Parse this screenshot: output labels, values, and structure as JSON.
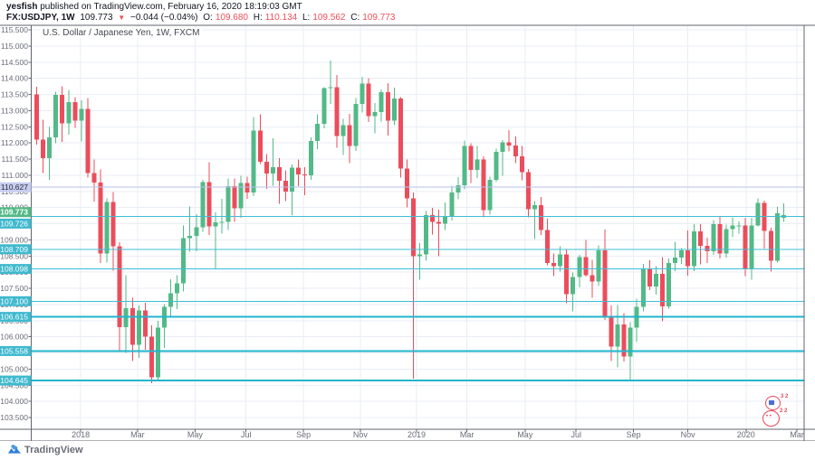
{
  "header": {
    "publisher": "yesfish",
    "published_rest": " published on TradingView.com, February 16, 2020 18:19:03 GMT",
    "symbol": "FX:USDJPY, 1W",
    "last": "109.773",
    "direction": "▼",
    "change": "−0.044 (−0.04%)",
    "o_label": "O:",
    "o_value": "109.680",
    "h_label": "H:",
    "h_value": "110.134",
    "l_label": "L:",
    "l_value": "109.562",
    "c_label": "C:",
    "c_value": "109.773"
  },
  "legend": {
    "text": "U.S. Dollar / Japanese Yen, 1W, FXCM"
  },
  "footer": {
    "brand": "TradingView"
  },
  "stamp": {
    "top_num": "3 2",
    "bottom_num": "2 2"
  },
  "chart_data": {
    "type": "candlestick",
    "title": "U.S. Dollar / Japanese Yen, 1W, FXCM",
    "symbol": "FX:USDJPY",
    "interval": "1W",
    "ylim": [
      103.5,
      115.5
    ],
    "grid": true,
    "y_axis_ticks": [
      115.5,
      115.0,
      114.5,
      114.0,
      113.5,
      113.0,
      112.5,
      112.0,
      111.5,
      111.0,
      110.5,
      110.0,
      109.5,
      109.0,
      108.5,
      108.0,
      107.5,
      107.0,
      106.5,
      106.0,
      105.5,
      105.0,
      104.5,
      104.0,
      103.5
    ],
    "x_axis_months": [
      {
        "label": "2018",
        "i": 6.9
      },
      {
        "label": "Mar",
        "i": 15.8
      },
      {
        "label": "May",
        "i": 24.8
      },
      {
        "label": "Jul",
        "i": 32.8
      },
      {
        "label": "Sep",
        "i": 41.8
      },
      {
        "label": "Nov",
        "i": 50.7
      },
      {
        "label": "2019",
        "i": 59.5
      },
      {
        "label": "Mar",
        "i": 67.4
      },
      {
        "label": "May",
        "i": 76.5
      },
      {
        "label": "Jul",
        "i": 84.5
      },
      {
        "label": "Sep",
        "i": 93.5
      },
      {
        "label": "Nov",
        "i": 102.0
      },
      {
        "label": "2020",
        "i": 111.1
      },
      {
        "label": "Mar",
        "i": 119.1
      }
    ],
    "levels": [
      {
        "price": 110.627,
        "label": "110.627",
        "style": "periwinkle",
        "thick": false
      },
      {
        "price": 109.726,
        "label": "109.726",
        "style": "cyan",
        "thick": false,
        "label_dy": 8
      },
      {
        "price": 108.709,
        "label": "108.709",
        "style": "cyan",
        "thick": false,
        "label_dy": 0
      },
      {
        "price": 108.098,
        "label": "108.098",
        "style": "cyan",
        "thick": false,
        "label_dy": 0
      },
      {
        "price": 107.1,
        "label": "107.100",
        "style": "cyan",
        "thick": false,
        "label_dy": 0
      },
      {
        "price": 106.615,
        "label": "106.615",
        "style": "cyan",
        "thick": true,
        "label_dy": 0
      },
      {
        "price": 105.558,
        "label": "105.558",
        "style": "cyan",
        "thick": true,
        "label_dy": 0
      },
      {
        "price": 104.645,
        "label": "104.645",
        "style": "cyan",
        "thick": true,
        "label_dy": 0
      }
    ],
    "last_price": {
      "value": 109.773,
      "label": "109.773"
    },
    "colors": {
      "up": "#53b987",
      "down": "#eb4d5c",
      "level_cyan": "#3fbdd4",
      "level_cyan_thick": "#22b5cc",
      "level_periwinkle": "#b9c1ea",
      "label_cyan_bg": "#3fb9ce",
      "label_periwinkle_bg": "#c6cdf0",
      "last_label_bg": "#53b987",
      "grid": "#e9eef5",
      "border": "#62656e",
      "axis_text": "#696c77"
    },
    "candles": [
      [
        113.5,
        113.74,
        111.95,
        112.1
      ],
      [
        112.1,
        112.72,
        111.07,
        111.53
      ],
      [
        111.53,
        112.49,
        110.85,
        112.17
      ],
      [
        112.17,
        113.59,
        111.99,
        113.48
      ],
      [
        113.48,
        113.75,
        112.03,
        112.6
      ],
      [
        112.6,
        113.64,
        112.25,
        113.26
      ],
      [
        113.26,
        113.42,
        112.46,
        112.69
      ],
      [
        112.69,
        113.32,
        112.05,
        113.05
      ],
      [
        113.05,
        113.39,
        110.92,
        111.07
      ],
      [
        111.07,
        111.48,
        110.19,
        110.77
      ],
      [
        110.77,
        111.18,
        108.28,
        108.58
      ],
      [
        108.58,
        110.29,
        108.3,
        110.17
      ],
      [
        110.17,
        110.48,
        108.04,
        108.8
      ],
      [
        108.8,
        108.92,
        105.55,
        106.3
      ],
      [
        106.3,
        107.9,
        105.5,
        106.88
      ],
      [
        106.88,
        107.2,
        105.25,
        105.75
      ],
      [
        105.75,
        106.97,
        105.35,
        106.82
      ],
      [
        106.82,
        107.05,
        105.6,
        106.01
      ],
      [
        106.01,
        106.36,
        104.56,
        104.74
      ],
      [
        104.74,
        106.49,
        104.62,
        106.28
      ],
      [
        106.28,
        107.01,
        105.66,
        106.93
      ],
      [
        106.93,
        107.78,
        106.62,
        107.35
      ],
      [
        107.35,
        107.9,
        106.85,
        107.66
      ],
      [
        107.66,
        109.45,
        107.4,
        109.05
      ],
      [
        109.05,
        110.03,
        108.63,
        109.12
      ],
      [
        109.12,
        109.8,
        108.65,
        109.39
      ],
      [
        109.39,
        110.85,
        109.25,
        110.78
      ],
      [
        110.78,
        111.4,
        109.15,
        109.41
      ],
      [
        109.41,
        109.85,
        108.11,
        109.54
      ],
      [
        109.54,
        110.27,
        109.19,
        109.55
      ],
      [
        109.55,
        110.9,
        109.3,
        110.66
      ],
      [
        110.66,
        110.9,
        109.55,
        109.97
      ],
      [
        109.97,
        110.98,
        109.68,
        110.76
      ],
      [
        110.76,
        110.95,
        110.27,
        110.47
      ],
      [
        110.47,
        112.8,
        110.35,
        112.38
      ],
      [
        112.38,
        112.88,
        111.35,
        111.41
      ],
      [
        111.41,
        111.65,
        110.58,
        111.05
      ],
      [
        111.05,
        112.15,
        110.68,
        111.25
      ],
      [
        111.25,
        111.53,
        110.11,
        110.83
      ],
      [
        110.83,
        111.15,
        110.2,
        110.5
      ],
      [
        110.5,
        111.33,
        109.77,
        111.24
      ],
      [
        111.24,
        111.48,
        110.66,
        111.03
      ],
      [
        111.03,
        111.25,
        110.38,
        110.99
      ],
      [
        110.99,
        112.17,
        110.85,
        112.06
      ],
      [
        112.06,
        112.88,
        111.81,
        112.59
      ],
      [
        112.59,
        113.72,
        112.45,
        113.7
      ],
      [
        113.7,
        114.55,
        113.2,
        113.72
      ],
      [
        113.72,
        114.1,
        111.85,
        112.21
      ],
      [
        112.21,
        112.75,
        111.63,
        112.55
      ],
      [
        112.55,
        112.9,
        111.38,
        111.9
      ],
      [
        111.9,
        113.39,
        111.75,
        113.2
      ],
      [
        113.2,
        114.04,
        112.94,
        113.83
      ],
      [
        113.83,
        114.0,
        112.64,
        112.83
      ],
      [
        112.83,
        113.23,
        112.3,
        112.96
      ],
      [
        112.96,
        113.66,
        112.66,
        113.57
      ],
      [
        113.57,
        113.85,
        112.23,
        112.69
      ],
      [
        112.69,
        113.71,
        112.55,
        113.38
      ],
      [
        113.38,
        113.42,
        110.93,
        111.21
      ],
      [
        111.21,
        111.49,
        110.0,
        110.28
      ],
      [
        110.28,
        110.47,
        104.7,
        108.5
      ],
      [
        108.5,
        108.9,
        107.77,
        108.55
      ],
      [
        108.55,
        109.89,
        108.35,
        109.77
      ],
      [
        109.77,
        109.99,
        109.17,
        109.55
      ],
      [
        109.55,
        109.93,
        108.5,
        109.5
      ],
      [
        109.5,
        110.16,
        109.3,
        109.73
      ],
      [
        109.73,
        110.67,
        109.6,
        110.47
      ],
      [
        110.47,
        110.94,
        110.25,
        110.69
      ],
      [
        110.69,
        112.08,
        110.56,
        111.91
      ],
      [
        111.91,
        111.99,
        110.76,
        111.17
      ],
      [
        111.17,
        111.9,
        110.91,
        111.48
      ],
      [
        111.48,
        111.58,
        109.7,
        109.92
      ],
      [
        109.92,
        110.96,
        109.78,
        110.86
      ],
      [
        110.86,
        111.82,
        110.8,
        111.73
      ],
      [
        111.73,
        112.09,
        110.98,
        112.02
      ],
      [
        112.02,
        112.4,
        111.74,
        111.92
      ],
      [
        111.92,
        112.2,
        111.38,
        111.58
      ],
      [
        111.58,
        111.9,
        110.84,
        111.1
      ],
      [
        111.1,
        111.19,
        109.7,
        109.95
      ],
      [
        109.95,
        110.2,
        109.02,
        110.08
      ],
      [
        110.08,
        110.32,
        109.15,
        109.31
      ],
      [
        109.31,
        109.65,
        108.22,
        108.29
      ],
      [
        108.29,
        108.58,
        107.88,
        108.19
      ],
      [
        108.19,
        108.8,
        108.02,
        108.55
      ],
      [
        108.55,
        108.72,
        107.04,
        107.32
      ],
      [
        107.32,
        107.99,
        106.78,
        107.85
      ],
      [
        107.85,
        108.53,
        107.53,
        108.47
      ],
      [
        108.47,
        108.99,
        107.86,
        107.91
      ],
      [
        107.91,
        108.38,
        107.21,
        107.71
      ],
      [
        107.71,
        108.83,
        107.57,
        108.68
      ],
      [
        108.68,
        109.32,
        106.52,
        106.59
      ],
      [
        106.59,
        106.97,
        105.25,
        105.69
      ],
      [
        105.69,
        106.98,
        105.05,
        106.38
      ],
      [
        106.38,
        106.73,
        105.24,
        105.39
      ],
      [
        105.39,
        106.45,
        104.65,
        106.28
      ],
      [
        106.28,
        107.18,
        105.84,
        106.92
      ],
      [
        106.92,
        108.26,
        106.78,
        108.09
      ],
      [
        108.09,
        108.37,
        107.45,
        107.56
      ],
      [
        107.56,
        108.18,
        107.31,
        107.95
      ],
      [
        107.95,
        108.47,
        106.48,
        106.94
      ],
      [
        106.94,
        108.43,
        106.87,
        108.29
      ],
      [
        108.29,
        108.94,
        108.03,
        108.45
      ],
      [
        108.45,
        108.75,
        108.25,
        108.67
      ],
      [
        108.67,
        109.29,
        107.89,
        108.19
      ],
      [
        108.19,
        109.49,
        108.03,
        109.26
      ],
      [
        109.26,
        109.48,
        108.24,
        108.81
      ],
      [
        108.81,
        109.07,
        108.28,
        108.65
      ],
      [
        108.65,
        109.61,
        108.54,
        109.49
      ],
      [
        109.49,
        109.73,
        108.43,
        108.58
      ],
      [
        108.58,
        109.47,
        108.45,
        109.33
      ],
      [
        109.33,
        109.7,
        109.1,
        109.44
      ],
      [
        109.44,
        109.57,
        109.19,
        109.44
      ],
      [
        109.44,
        109.68,
        107.88,
        108.09
      ],
      [
        108.09,
        109.68,
        107.77,
        109.45
      ],
      [
        109.45,
        110.29,
        109.42,
        110.14
      ],
      [
        110.14,
        110.22,
        108.73,
        109.28
      ],
      [
        109.28,
        109.38,
        108.02,
        108.35
      ],
      [
        108.35,
        110.03,
        108.3,
        109.82
      ],
      [
        109.68,
        110.13,
        109.56,
        109.77
      ]
    ]
  }
}
